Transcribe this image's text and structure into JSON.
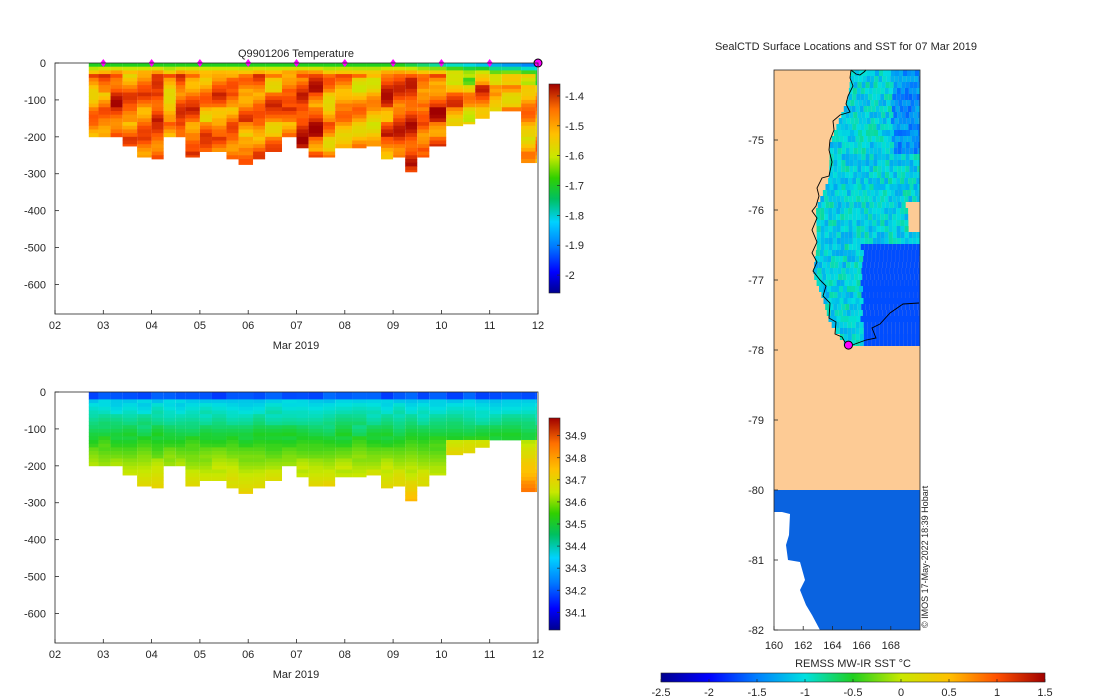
{
  "chart_data": [
    {
      "id": "temperature",
      "type": "heatmap",
      "title": "Q9901206  Temperature",
      "xlabel": "Mar 2019",
      "xticks": [
        "02",
        "03",
        "04",
        "05",
        "06",
        "07",
        "08",
        "09",
        "10",
        "11",
        "12"
      ],
      "xlim": [
        2,
        12
      ],
      "yticks": [
        "0",
        "-100",
        "-200",
        "-300",
        "-400",
        "-500",
        "-600"
      ],
      "ylim": [
        -680,
        0
      ],
      "colorbar": {
        "range": [
          -2.06,
          -1.36
        ],
        "ticks": [
          "-1.4",
          "-1.5",
          "-1.6",
          "-1.7",
          "-1.8",
          "-1.9",
          "-2"
        ],
        "tick_values": [
          -1.4,
          -1.5,
          -1.6,
          -1.7,
          -1.8,
          -1.9,
          -2.0
        ]
      },
      "profile_times": [
        2.75,
        2.95,
        3.2,
        3.45,
        3.75,
        4.05,
        4.3,
        4.55,
        4.75,
        5.05,
        5.3,
        5.6,
        5.85,
        6.15,
        6.4,
        6.75,
        7.05,
        7.3,
        7.6,
        7.85,
        8.2,
        8.5,
        8.8,
        9.05,
        9.3,
        9.55,
        9.8,
        10.15,
        10.5,
        10.75,
        11.05,
        11.3,
        11.7,
        12.0
      ],
      "profile_depths": [
        200,
        200,
        200,
        225,
        255,
        260,
        200,
        200,
        255,
        240,
        240,
        260,
        275,
        260,
        240,
        200,
        230,
        255,
        255,
        230,
        230,
        225,
        260,
        255,
        295,
        255,
        225,
        170,
        165,
        150,
        130,
        130,
        270,
        270
      ],
      "surface_markers": [
        3.0,
        4.0,
        5.0,
        6.0,
        7.0,
        8.0,
        9.0,
        10.0,
        11.0
      ],
      "latest_marker": 12.0
    },
    {
      "id": "salinity",
      "type": "heatmap",
      "title": "",
      "xlabel": "Mar 2019",
      "xticks": [
        "02",
        "03",
        "04",
        "05",
        "06",
        "07",
        "08",
        "09",
        "10",
        "11",
        "12"
      ],
      "xlim": [
        2,
        12
      ],
      "yticks": [
        "0",
        "-100",
        "-200",
        "-300",
        "-400",
        "-500",
        "-600"
      ],
      "ylim": [
        -680,
        0
      ],
      "colorbar": {
        "range": [
          34.02,
          34.98
        ],
        "ticks": [
          "34.9",
          "34.8",
          "34.7",
          "34.6",
          "34.5",
          "34.4",
          "34.3",
          "34.2",
          "34.1"
        ],
        "tick_values": [
          34.9,
          34.8,
          34.7,
          34.6,
          34.5,
          34.4,
          34.3,
          34.2,
          34.1
        ]
      },
      "profile_times": [
        2.75,
        2.95,
        3.2,
        3.45,
        3.75,
        4.05,
        4.3,
        4.55,
        4.75,
        5.05,
        5.3,
        5.6,
        5.85,
        6.15,
        6.4,
        6.75,
        7.05,
        7.3,
        7.6,
        7.85,
        8.2,
        8.5,
        8.8,
        9.05,
        9.3,
        9.55,
        9.8,
        10.15,
        10.5,
        10.75,
        11.05,
        11.3,
        11.7,
        12.0
      ],
      "profile_depths": [
        200,
        200,
        200,
        225,
        255,
        260,
        200,
        200,
        255,
        240,
        240,
        260,
        275,
        260,
        240,
        200,
        230,
        255,
        255,
        230,
        230,
        225,
        260,
        255,
        295,
        255,
        225,
        170,
        165,
        150,
        130,
        130,
        270,
        270
      ]
    },
    {
      "id": "sst_map",
      "type": "heatmap",
      "title": "SealCTD Surface Locations and SST for 07 Mar 2019",
      "xticks": [
        "160",
        "162",
        "164",
        "166",
        "168"
      ],
      "xtick_values": [
        160,
        162,
        164,
        166,
        168
      ],
      "xlim": [
        160,
        170
      ],
      "yticks": [
        "-75",
        "-76",
        "-77",
        "-78",
        "-79",
        "-80",
        "-81",
        "-82"
      ],
      "ytick_values": [
        -75,
        -76,
        -77,
        -78,
        -79,
        -80,
        -81,
        -82
      ],
      "ylim": [
        -82,
        -74
      ],
      "colorbar_label": "REMSS MW-IR SST °C",
      "colorbar_ticks": [
        "-2.5",
        "-2",
        "-1.5",
        "-1",
        "-0.5",
        "0",
        "0.5",
        "1",
        "1.5"
      ],
      "colorbar_range": [
        -2.5,
        1.5
      ],
      "seal_location": {
        "lon": 165.1,
        "lat": -77.93
      },
      "credit": "© IMOS 17-May-2022 18:39 Hobart"
    }
  ]
}
